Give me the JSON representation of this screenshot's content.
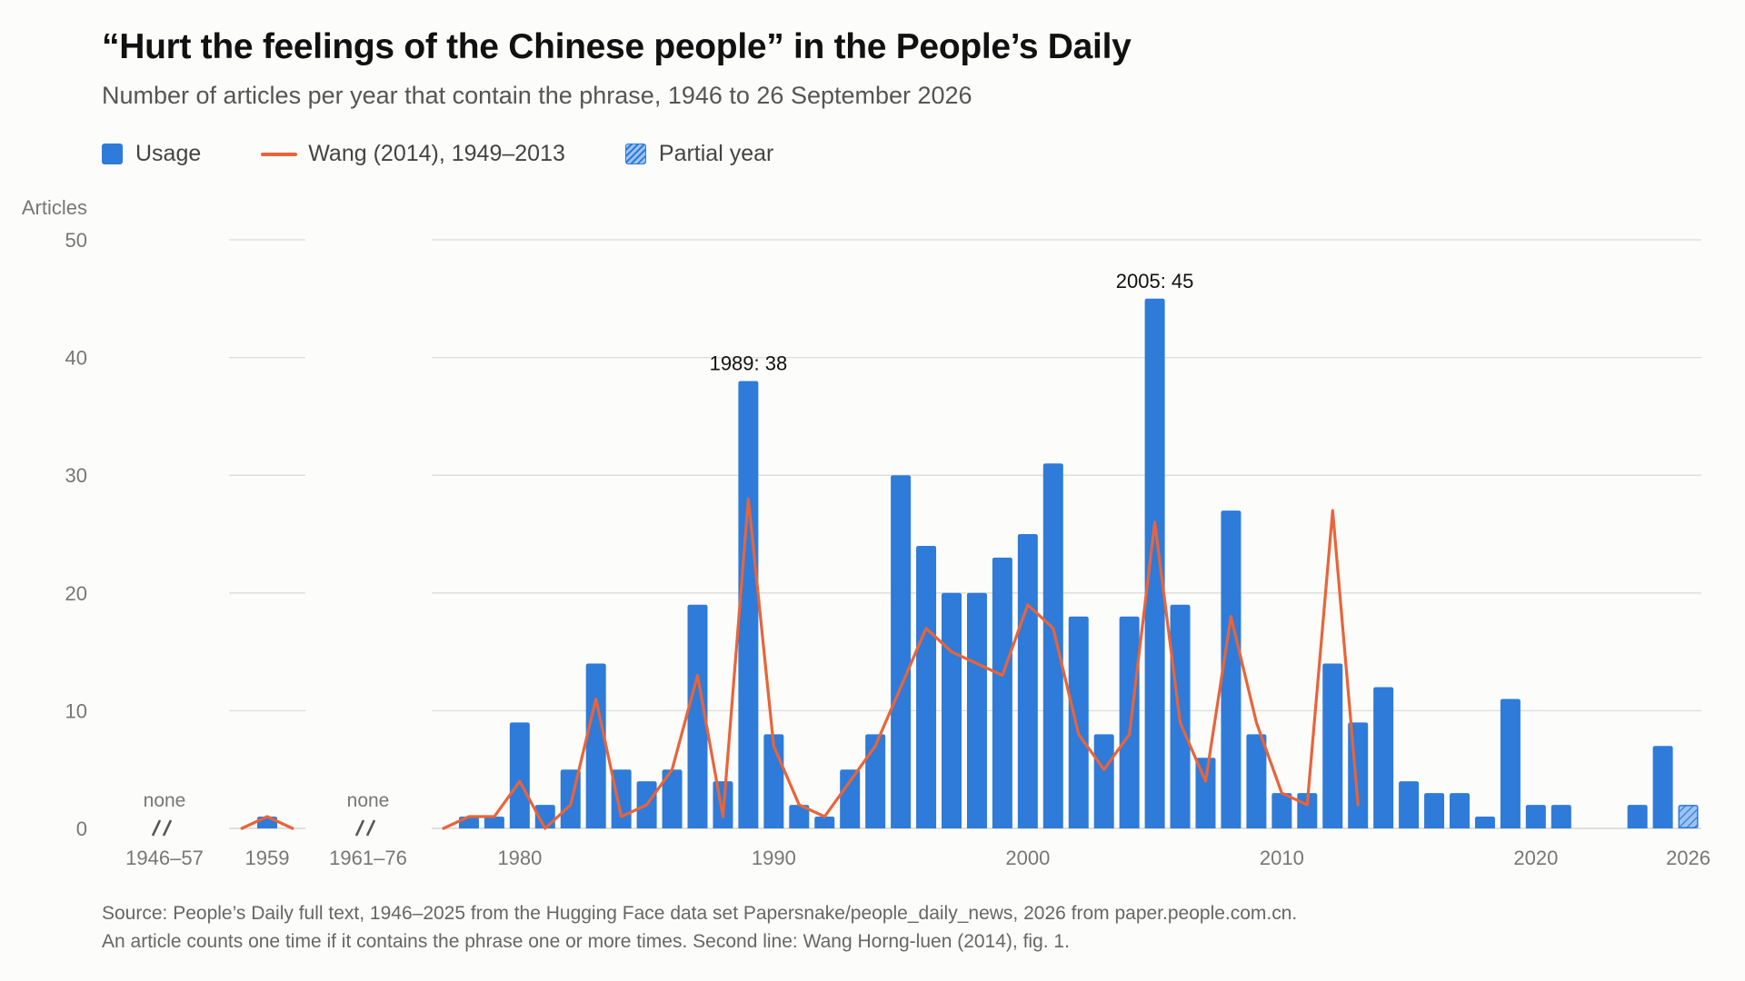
{
  "title": "“Hurt the feelings of the Chinese people” in the People’s Daily",
  "subtitle": "Number of articles per year that contain the phrase, 1946 to 26 September 2026",
  "legend": {
    "usage": "Usage",
    "wang": "Wang (2014), 1949–2013",
    "partial": "Partial year"
  },
  "colors": {
    "usage": "#2e7bd9",
    "wang": "#e8643a",
    "partial": "#9ec3f2"
  },
  "footer": {
    "line1": "Source: People’s Daily full text, 1946–2025 from the Hugging Face data set Papersnake/people_daily_news, 2026 from paper.people.com.cn.",
    "line2": "An article counts one time if it contains the phrase one or more times. Second line: Wang Horng-luen (2014), fig. 1."
  },
  "chart_data": {
    "type": "bar",
    "ylabel": "Articles",
    "ylim": [
      0,
      50
    ],
    "yticks": [
      0,
      10,
      20,
      30,
      40,
      50
    ],
    "grid": true,
    "legend_position": "top-left",
    "broken_axis_segments": [
      {
        "label": "1946–57",
        "note": "none"
      },
      {
        "label": "1959"
      },
      {
        "label": "1961–76",
        "note": "none"
      }
    ],
    "xtick_labels": [
      "1946–57",
      "1959",
      "1961–76",
      "1980",
      "1990",
      "2000",
      "2010",
      "2020",
      "2026"
    ],
    "series": [
      {
        "name": "Usage",
        "type": "bar",
        "points": [
          [
            1959,
            1
          ],
          [
            1977,
            0
          ],
          [
            1978,
            1
          ],
          [
            1979,
            1
          ],
          [
            1980,
            9
          ],
          [
            1981,
            2
          ],
          [
            1982,
            5
          ],
          [
            1983,
            14
          ],
          [
            1984,
            5
          ],
          [
            1985,
            4
          ],
          [
            1986,
            5
          ],
          [
            1987,
            19
          ],
          [
            1988,
            4
          ],
          [
            1989,
            38
          ],
          [
            1990,
            8
          ],
          [
            1991,
            2
          ],
          [
            1992,
            1
          ],
          [
            1993,
            5
          ],
          [
            1994,
            8
          ],
          [
            1995,
            30
          ],
          [
            1996,
            24
          ],
          [
            1997,
            20
          ],
          [
            1998,
            20
          ],
          [
            1999,
            23
          ],
          [
            2000,
            25
          ],
          [
            2001,
            31
          ],
          [
            2002,
            18
          ],
          [
            2003,
            8
          ],
          [
            2004,
            18
          ],
          [
            2005,
            45
          ],
          [
            2006,
            19
          ],
          [
            2007,
            6
          ],
          [
            2008,
            27
          ],
          [
            2009,
            8
          ],
          [
            2010,
            3
          ],
          [
            2011,
            3
          ],
          [
            2012,
            14
          ],
          [
            2013,
            9
          ],
          [
            2014,
            12
          ],
          [
            2015,
            4
          ],
          [
            2016,
            3
          ],
          [
            2017,
            3
          ],
          [
            2018,
            1
          ],
          [
            2019,
            11
          ],
          [
            2020,
            2
          ],
          [
            2021,
            2
          ],
          [
            2022,
            0
          ],
          [
            2023,
            0
          ],
          [
            2024,
            2
          ],
          [
            2025,
            7
          ]
        ]
      },
      {
        "name": "Wang (2014), 1949–2013",
        "type": "line",
        "segments": [
          [
            [
              1958,
              0
            ],
            [
              1959,
              1
            ],
            [
              1960,
              0
            ]
          ],
          [
            [
              1977,
              0
            ],
            [
              1978,
              1
            ],
            [
              1979,
              1
            ],
            [
              1980,
              4
            ],
            [
              1981,
              0
            ],
            [
              1982,
              2
            ],
            [
              1983,
              11
            ],
            [
              1984,
              1
            ],
            [
              1985,
              2
            ],
            [
              1986,
              5
            ],
            [
              1987,
              13
            ],
            [
              1988,
              1
            ],
            [
              1989,
              28
            ],
            [
              1990,
              7
            ],
            [
              1991,
              2
            ],
            [
              1992,
              1
            ],
            [
              1993,
              4
            ],
            [
              1994,
              7
            ],
            [
              1995,
              12
            ],
            [
              1996,
              17
            ],
            [
              1997,
              15
            ],
            [
              1998,
              14
            ],
            [
              1999,
              13
            ],
            [
              2000,
              19
            ],
            [
              2001,
              17
            ],
            [
              2002,
              8
            ],
            [
              2003,
              5
            ],
            [
              2004,
              8
            ],
            [
              2005,
              26
            ],
            [
              2006,
              9
            ],
            [
              2007,
              4
            ],
            [
              2008,
              18
            ],
            [
              2009,
              9
            ],
            [
              2010,
              3
            ],
            [
              2011,
              2
            ],
            [
              2012,
              27
            ],
            [
              2013,
              2
            ]
          ]
        ]
      },
      {
        "name": "Partial year",
        "type": "bar",
        "points": [
          [
            2026,
            2
          ]
        ]
      }
    ],
    "annotations": [
      {
        "year": 1989,
        "text": "1989: 38"
      },
      {
        "year": 2005,
        "text": "2005: 45"
      }
    ]
  }
}
